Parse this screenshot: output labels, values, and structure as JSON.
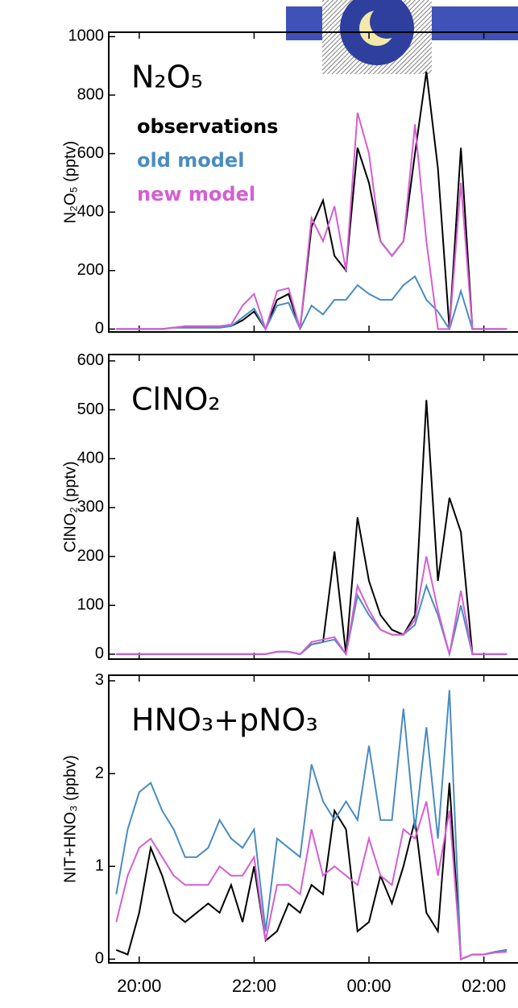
{
  "chart_data": [
    {
      "type": "line",
      "label": "N₂O₅",
      "ylabel": "N₂O₅ (pptv)",
      "x": [
        19.6,
        19.8,
        20.0,
        20.2,
        20.4,
        20.6,
        20.8,
        21.0,
        21.2,
        21.4,
        21.6,
        21.8,
        22.0,
        22.2,
        22.4,
        22.6,
        22.8,
        23.0,
        23.2,
        23.4,
        23.6,
        23.8,
        24.0,
        24.2,
        24.4,
        24.6,
        24.8,
        25.0,
        25.2,
        25.4,
        25.6,
        25.8,
        26.0,
        26.2,
        26.4
      ],
      "xlim": [
        19.47,
        26.58
      ],
      "ylim": [
        -10,
        1015
      ],
      "yticks": [
        0,
        200,
        400,
        600,
        800,
        1000
      ],
      "series": [
        {
          "name": "observations",
          "color": "#000000",
          "values": [
            0,
            0,
            0,
            0,
            0,
            5,
            5,
            5,
            5,
            5,
            10,
            30,
            60,
            0,
            100,
            120,
            0,
            350,
            440,
            250,
            200,
            620,
            500,
            300,
            250,
            300,
            600,
            880,
            550,
            0,
            620,
            0,
            0,
            0,
            0
          ]
        },
        {
          "name": "old model",
          "color": "#4a8cc0",
          "values": [
            0,
            0,
            0,
            0,
            0,
            5,
            5,
            5,
            5,
            5,
            10,
            40,
            70,
            0,
            80,
            90,
            0,
            80,
            50,
            100,
            100,
            150,
            120,
            100,
            100,
            150,
            180,
            100,
            60,
            0,
            130,
            0,
            0,
            0,
            0
          ]
        },
        {
          "name": "new model",
          "color": "#d45fd2",
          "values": [
            0,
            0,
            0,
            0,
            0,
            5,
            10,
            10,
            10,
            10,
            15,
            80,
            120,
            0,
            130,
            140,
            0,
            380,
            300,
            420,
            200,
            740,
            600,
            300,
            250,
            300,
            700,
            300,
            0,
            0,
            500,
            0,
            0,
            0,
            0
          ]
        }
      ]
    },
    {
      "type": "line",
      "label": "ClNO₂",
      "ylabel": "ClNO₂ (pptv)",
      "x": [
        19.6,
        19.8,
        20.0,
        20.2,
        20.4,
        20.6,
        20.8,
        21.0,
        21.2,
        21.4,
        21.6,
        21.8,
        22.0,
        22.2,
        22.4,
        22.6,
        22.8,
        23.0,
        23.2,
        23.4,
        23.6,
        23.8,
        24.0,
        24.2,
        24.4,
        24.6,
        24.8,
        25.0,
        25.2,
        25.4,
        25.6,
        25.8,
        26.0,
        26.2,
        26.4
      ],
      "xlim": [
        19.47,
        26.58
      ],
      "ylim": [
        -10,
        613
      ],
      "yticks": [
        0,
        100,
        200,
        300,
        400,
        500,
        600
      ],
      "series": [
        {
          "color": "#000000",
          "values": [
            0,
            0,
            0,
            0,
            0,
            0,
            0,
            0,
            0,
            0,
            0,
            0,
            0,
            0,
            5,
            5,
            0,
            20,
            25,
            210,
            0,
            280,
            150,
            80,
            50,
            40,
            80,
            520,
            150,
            320,
            250,
            0,
            0,
            0,
            0
          ]
        },
        {
          "color": "#4a8cc0",
          "values": [
            0,
            0,
            0,
            0,
            0,
            0,
            0,
            0,
            0,
            0,
            0,
            0,
            0,
            0,
            5,
            5,
            0,
            20,
            25,
            30,
            0,
            120,
            80,
            50,
            40,
            40,
            60,
            140,
            80,
            0,
            100,
            0,
            0,
            0,
            0
          ]
        },
        {
          "color": "#d45fd2",
          "values": [
            0,
            0,
            0,
            0,
            0,
            0,
            0,
            0,
            0,
            0,
            0,
            0,
            0,
            0,
            5,
            5,
            0,
            25,
            30,
            35,
            0,
            140,
            90,
            50,
            40,
            40,
            70,
            200,
            90,
            0,
            130,
            0,
            0,
            0,
            0
          ]
        }
      ]
    },
    {
      "type": "line",
      "label": "HNO₃+pNO₃",
      "ylabel": "NIT+HNO₃ (ppbv)",
      "x": [
        19.6,
        19.8,
        20.0,
        20.2,
        20.4,
        20.6,
        20.8,
        21.0,
        21.2,
        21.4,
        21.6,
        21.8,
        22.0,
        22.2,
        22.4,
        22.6,
        22.8,
        23.0,
        23.2,
        23.4,
        23.6,
        23.8,
        24.0,
        24.2,
        24.4,
        24.6,
        24.8,
        25.0,
        25.2,
        25.4,
        25.6,
        25.8,
        26.0,
        26.2,
        26.4
      ],
      "xlim": [
        19.47,
        26.58
      ],
      "ylim": [
        -0.04,
        3.06
      ],
      "yticks": [
        0,
        1,
        2,
        3
      ],
      "xticks": [
        {
          "value": 20,
          "label": "20:00"
        },
        {
          "value": 22,
          "label": "22:00"
        },
        {
          "value": 24,
          "label": "00:00"
        },
        {
          "value": 26,
          "label": "02:00"
        }
      ],
      "series": [
        {
          "color": "#000000",
          "values": [
            0.1,
            0.05,
            0.5,
            1.2,
            0.9,
            0.5,
            0.4,
            0.5,
            0.6,
            0.5,
            0.8,
            0.4,
            1.0,
            0.2,
            0.3,
            0.6,
            0.5,
            0.8,
            0.7,
            1.6,
            1.4,
            0.3,
            0.4,
            0.9,
            0.6,
            1.0,
            1.5,
            0.5,
            0.3,
            1.9,
            0,
            0.05,
            0.05,
            0.08,
            0.1
          ]
        },
        {
          "color": "#4a8cc0",
          "values": [
            0.7,
            1.4,
            1.8,
            1.9,
            1.6,
            1.4,
            1.1,
            1.1,
            1.2,
            1.5,
            1.3,
            1.2,
            1.4,
            0.3,
            1.3,
            1.2,
            1.1,
            2.1,
            1.7,
            1.5,
            1.7,
            1.5,
            2.3,
            1.5,
            1.5,
            2.7,
            1.4,
            2.5,
            1.3,
            2.9,
            0,
            0.05,
            0.05,
            0.08,
            0.1
          ]
        },
        {
          "color": "#d45fd2",
          "values": [
            0.4,
            0.9,
            1.2,
            1.3,
            1.1,
            0.9,
            0.8,
            0.8,
            0.8,
            1.0,
            0.9,
            0.9,
            1.1,
            0.2,
            0.8,
            0.8,
            0.7,
            1.4,
            0.9,
            1.0,
            0.9,
            0.8,
            1.3,
            0.9,
            0.8,
            1.4,
            1.3,
            1.7,
            0.9,
            1.6,
            0,
            0.05,
            0.05,
            0.07,
            0.08
          ]
        }
      ]
    }
  ]
}
